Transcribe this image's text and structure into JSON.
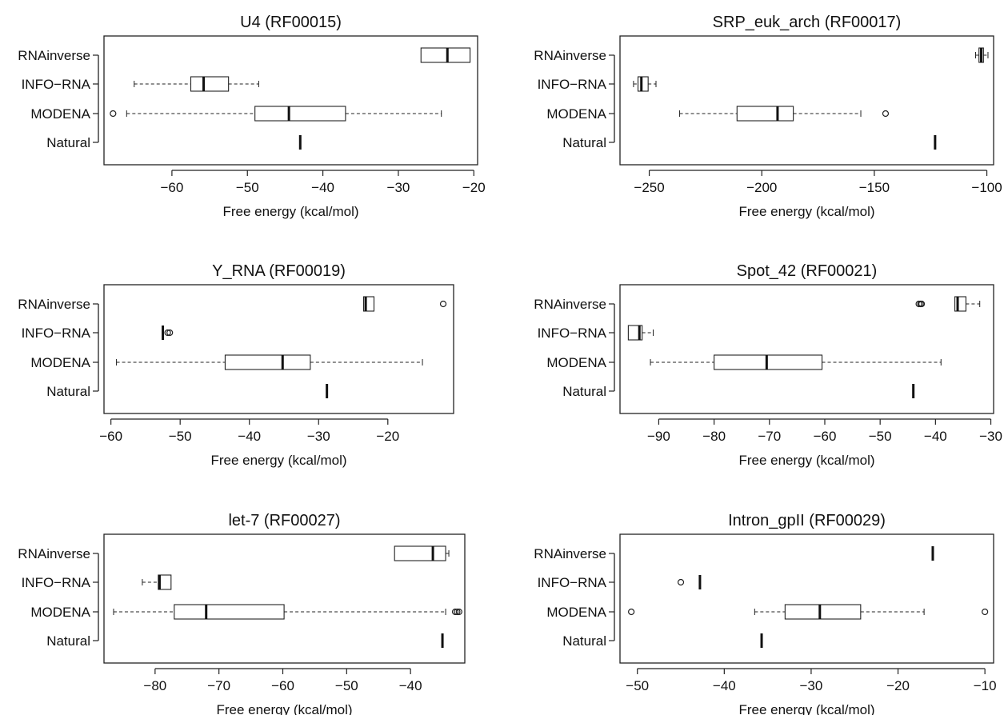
{
  "chart_data": [
    {
      "type": "box",
      "title": "U4 (RF00015)",
      "xlabel": "Free energy (kcal/mol)",
      "xlim": [
        -69,
        -19.5
      ],
      "xticks": [
        -60,
        -50,
        -40,
        -30,
        -20
      ],
      "xtick_labels": [
        "−60",
        "−50",
        "−40",
        "−30",
        "−20"
      ],
      "categories": [
        "RNAinverse",
        "INFO−RNA",
        "MODENA",
        "Natural"
      ],
      "boxes": [
        {
          "name": "RNAinverse",
          "whislo": -27,
          "q1": -27,
          "med": -23.5,
          "q3": -20.5,
          "whishi": -20.5,
          "fliers": []
        },
        {
          "name": "INFO−RNA",
          "whislo": -65,
          "q1": -57.5,
          "med": -55.8,
          "q3": -52.5,
          "whishi": -48.5,
          "fliers": []
        },
        {
          "name": "MODENA",
          "whislo": -66,
          "q1": -49,
          "med": -44.5,
          "q3": -37,
          "whishi": -24.3,
          "fliers": [
            -67.8
          ]
        },
        {
          "name": "Natural",
          "whislo": -43,
          "q1": -43,
          "med": -43,
          "q3": -43,
          "whishi": -43,
          "fliers": []
        }
      ]
    },
    {
      "type": "box",
      "title": "SRP_euk_arch (RF00017)",
      "xlabel": "Free energy (kcal/mol)",
      "xlim": [
        -263,
        -97
      ],
      "xticks": [
        -250,
        -200,
        -150,
        -100
      ],
      "xtick_labels": [
        "−250",
        "−200",
        "−150",
        "−100"
      ],
      "categories": [
        "RNAinverse",
        "INFO−RNA",
        "MODENA",
        "Natural"
      ],
      "boxes": [
        {
          "name": "RNAinverse",
          "whislo": -105,
          "q1": -103.5,
          "med": -102.5,
          "q3": -101.5,
          "whishi": -99.5,
          "fliers": []
        },
        {
          "name": "INFO−RNA",
          "whislo": -257,
          "q1": -255,
          "med": -253.5,
          "q3": -250.5,
          "whishi": -247,
          "fliers": []
        },
        {
          "name": "MODENA",
          "whislo": -236.5,
          "q1": -211,
          "med": -193,
          "q3": -186,
          "whishi": -156,
          "fliers": [
            -145
          ]
        },
        {
          "name": "Natural",
          "whislo": -123,
          "q1": -123,
          "med": -123,
          "q3": -123,
          "whishi": -123,
          "fliers": []
        }
      ]
    },
    {
      "type": "box",
      "title": "Y_RNA (RF00019)",
      "xlabel": "Free energy (kcal/mol)",
      "xlim": [
        -61,
        -10.5
      ],
      "xticks": [
        -60,
        -50,
        -40,
        -30,
        -20
      ],
      "xtick_labels": [
        "−60",
        "−50",
        "−40",
        "−30",
        "−20"
      ],
      "categories": [
        "RNAinverse",
        "INFO−RNA",
        "MODENA",
        "Natural"
      ],
      "boxes": [
        {
          "name": "RNAinverse",
          "whislo": -23.5,
          "q1": -23.5,
          "med": -23.2,
          "q3": -22,
          "whishi": -22,
          "fliers": [
            -12
          ]
        },
        {
          "name": "INFO−RNA",
          "whislo": -52.5,
          "q1": -52.5,
          "med": -52.5,
          "q3": -52.5,
          "whishi": -52.5,
          "fliers": [
            -51.8,
            -51.5
          ]
        },
        {
          "name": "MODENA",
          "whislo": -59.2,
          "q1": -43.5,
          "med": -35.2,
          "q3": -31.2,
          "whishi": -15,
          "fliers": []
        },
        {
          "name": "Natural",
          "whislo": -28.8,
          "q1": -28.8,
          "med": -28.8,
          "q3": -28.8,
          "whishi": -28.8,
          "fliers": []
        }
      ]
    },
    {
      "type": "box",
      "title": "Spot_42 (RF00021)",
      "xlabel": "Free energy (kcal/mol)",
      "xlim": [
        -97,
        -29.5
      ],
      "xticks": [
        -90,
        -80,
        -70,
        -60,
        -50,
        -40,
        -30
      ],
      "xtick_labels": [
        "−90",
        "−80",
        "−70",
        "−60",
        "−50",
        "−40",
        "−30"
      ],
      "categories": [
        "RNAinverse",
        "INFO−RNA",
        "MODENA",
        "Natural"
      ],
      "boxes": [
        {
          "name": "RNAinverse",
          "whislo": -36.5,
          "q1": -36.5,
          "med": -36,
          "q3": -34.5,
          "whishi": -32,
          "fliers": [
            -43,
            -42.7,
            -42.5
          ]
        },
        {
          "name": "INFO−RNA",
          "whislo": -95.5,
          "q1": -95.5,
          "med": -93.5,
          "q3": -93,
          "whishi": -91,
          "fliers": []
        },
        {
          "name": "MODENA",
          "whislo": -91.5,
          "q1": -80,
          "med": -70.5,
          "q3": -60.5,
          "whishi": -39,
          "fliers": []
        },
        {
          "name": "Natural",
          "whislo": -44,
          "q1": -44,
          "med": -44,
          "q3": -44,
          "whishi": -44,
          "fliers": []
        }
      ]
    },
    {
      "type": "box",
      "title": "let-7 (RF00027)",
      "xlabel": "Free energy (kcal/mol)",
      "xlim": [
        -88,
        -31.5
      ],
      "xticks": [
        -80,
        -70,
        -60,
        -50,
        -40
      ],
      "xtick_labels": [
        "−80",
        "−70",
        "−60",
        "−50",
        "−40"
      ],
      "categories": [
        "RNAinverse",
        "INFO−RNA",
        "MODENA",
        "Natural"
      ],
      "boxes": [
        {
          "name": "RNAinverse",
          "whislo": -42.5,
          "q1": -42.5,
          "med": -36.5,
          "q3": -34.5,
          "whishi": -34,
          "fliers": []
        },
        {
          "name": "INFO−RNA",
          "whislo": -82,
          "q1": -79.5,
          "med": -79.3,
          "q3": -77.5,
          "whishi": -77.5,
          "fliers": []
        },
        {
          "name": "MODENA",
          "whislo": -86.5,
          "q1": -77,
          "med": -72,
          "q3": -59.8,
          "whishi": -34.5,
          "fliers": [
            -33,
            -32.7,
            -32.4
          ]
        },
        {
          "name": "Natural",
          "whislo": -35,
          "q1": -35,
          "med": -35,
          "q3": -35,
          "whishi": -35,
          "fliers": []
        }
      ]
    },
    {
      "type": "box",
      "title": "Intron_gpII (RF00029)",
      "xlabel": "Free energy (kcal/mol)",
      "xlim": [
        -52,
        -9
      ],
      "xticks": [
        -50,
        -40,
        -30,
        -20,
        -10
      ],
      "xtick_labels": [
        "−50",
        "−40",
        "−30",
        "−20",
        "−10"
      ],
      "categories": [
        "RNAinverse",
        "INFO−RNA",
        "MODENA",
        "Natural"
      ],
      "boxes": [
        {
          "name": "RNAinverse",
          "whislo": -16,
          "q1": -16,
          "med": -16,
          "q3": -16,
          "whishi": -16,
          "fliers": []
        },
        {
          "name": "INFO−RNA",
          "whislo": -42.8,
          "q1": -42.8,
          "med": -42.8,
          "q3": -42.8,
          "whishi": -42.8,
          "fliers": [
            -45
          ]
        },
        {
          "name": "MODENA",
          "whislo": -36.5,
          "q1": -33,
          "med": -29,
          "q3": -24.3,
          "whishi": -17,
          "fliers": [
            -50.7,
            -10
          ]
        },
        {
          "name": "Natural",
          "whislo": -35.7,
          "q1": -35.7,
          "med": -35.7,
          "q3": -35.7,
          "whishi": -35.7,
          "fliers": []
        }
      ]
    }
  ]
}
